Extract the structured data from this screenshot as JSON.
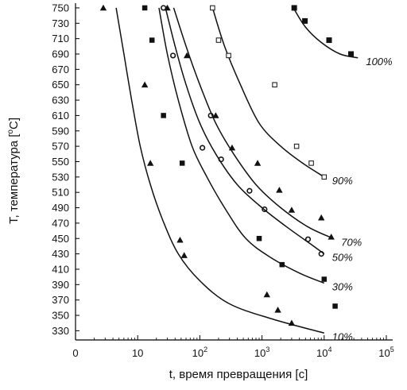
{
  "chart_data": {
    "type": "scatter",
    "xlabel": "t, время превращения [c]",
    "ylabel_main": "T, температура [",
    "ylabel_deg": "o",
    "ylabel_unit": "C]",
    "x_scale": "log",
    "xlim": [
      1,
      100000
    ],
    "ylim": [
      318,
      752
    ],
    "x_ticks": [
      {
        "v": 1,
        "label": "0"
      },
      {
        "v": 10,
        "label": "10"
      },
      {
        "v": 100,
        "label": "10",
        "exp": "2"
      },
      {
        "v": 1000,
        "label": "10",
        "exp": "3"
      },
      {
        "v": 10000,
        "label": "10",
        "exp": "4"
      },
      {
        "v": 100000,
        "label": "10",
        "exp": "5"
      }
    ],
    "y_ticks": [
      330,
      350,
      370,
      390,
      410,
      430,
      450,
      470,
      490,
      510,
      530,
      550,
      570,
      590,
      610,
      630,
      650,
      670,
      690,
      710,
      730,
      750
    ],
    "grid": false,
    "curves": [
      {
        "name": "10%",
        "points": [
          [
            4.5,
            750
          ],
          [
            6,
            690
          ],
          [
            8,
            630
          ],
          [
            11,
            570
          ],
          [
            16,
            520
          ],
          [
            25,
            475
          ],
          [
            45,
            430
          ],
          [
            100,
            395
          ],
          [
            300,
            365
          ],
          [
            1500,
            345
          ],
          [
            10000,
            327
          ]
        ]
      },
      {
        "name": "30%",
        "points": [
          [
            22,
            750
          ],
          [
            30,
            690
          ],
          [
            45,
            630
          ],
          [
            75,
            570
          ],
          [
            130,
            530
          ],
          [
            250,
            490
          ],
          [
            550,
            450
          ],
          [
            1400,
            425
          ],
          [
            4000,
            405
          ],
          [
            10000,
            392
          ]
        ]
      },
      {
        "name": "50%",
        "points": [
          [
            28,
            750
          ],
          [
            40,
            700
          ],
          [
            60,
            650
          ],
          [
            100,
            600
          ],
          [
            180,
            560
          ],
          [
            400,
            520
          ],
          [
            1000,
            490
          ],
          [
            2500,
            465
          ],
          [
            6000,
            443
          ],
          [
            10000,
            430
          ]
        ]
      },
      {
        "name": "70%",
        "points": [
          [
            38,
            750
          ],
          [
            60,
            700
          ],
          [
            100,
            650
          ],
          [
            180,
            600
          ],
          [
            350,
            560
          ],
          [
            800,
            520
          ],
          [
            2000,
            490
          ],
          [
            5500,
            465
          ],
          [
            14000,
            450
          ]
        ]
      },
      {
        "name": "90%",
        "points": [
          [
            160,
            750
          ],
          [
            250,
            700
          ],
          [
            450,
            650
          ],
          [
            900,
            600
          ],
          [
            2000,
            570
          ],
          [
            4500,
            548
          ],
          [
            10000,
            530
          ]
        ]
      },
      {
        "name": "100%",
        "points": [
          [
            3200,
            750
          ],
          [
            5000,
            725
          ],
          [
            9000,
            705
          ],
          [
            18000,
            690
          ],
          [
            35000,
            685
          ]
        ]
      }
    ],
    "markers": {
      "triangle": [
        [
          2.8,
          750
        ],
        [
          30,
          750
        ],
        [
          62,
          688
        ],
        [
          13,
          650
        ],
        [
          16,
          548
        ],
        [
          48,
          448
        ],
        [
          56,
          428
        ],
        [
          180,
          610
        ],
        [
          330,
          568
        ],
        [
          850,
          548
        ],
        [
          1900,
          513
        ],
        [
          3000,
          487
        ],
        [
          9000,
          477
        ],
        [
          13000,
          452
        ],
        [
          1200,
          377
        ],
        [
          1800,
          357
        ],
        [
          3000,
          340
        ]
      ],
      "circle": [
        [
          26,
          750
        ],
        [
          37,
          688
        ],
        [
          150,
          610
        ],
        [
          110,
          568
        ],
        [
          220,
          553
        ],
        [
          630,
          512
        ],
        [
          1100,
          488
        ],
        [
          5500,
          449
        ],
        [
          9000,
          430
        ]
      ],
      "square": [
        [
          13,
          750
        ],
        [
          17,
          708
        ],
        [
          26,
          610
        ],
        [
          52,
          548
        ],
        [
          900,
          450
        ],
        [
          2100,
          416
        ],
        [
          10000,
          397
        ],
        [
          15000,
          362
        ]
      ],
      "open_square": [
        [
          160,
          750
        ],
        [
          200,
          708
        ],
        [
          290,
          688
        ],
        [
          1600,
          650
        ],
        [
          3600,
          570
        ],
        [
          6200,
          548
        ],
        [
          10000,
          530
        ]
      ],
      "filled_square_large": [
        [
          3300,
          750
        ],
        [
          4900,
          733
        ],
        [
          12000,
          708
        ],
        [
          27000,
          690
        ]
      ]
    }
  }
}
